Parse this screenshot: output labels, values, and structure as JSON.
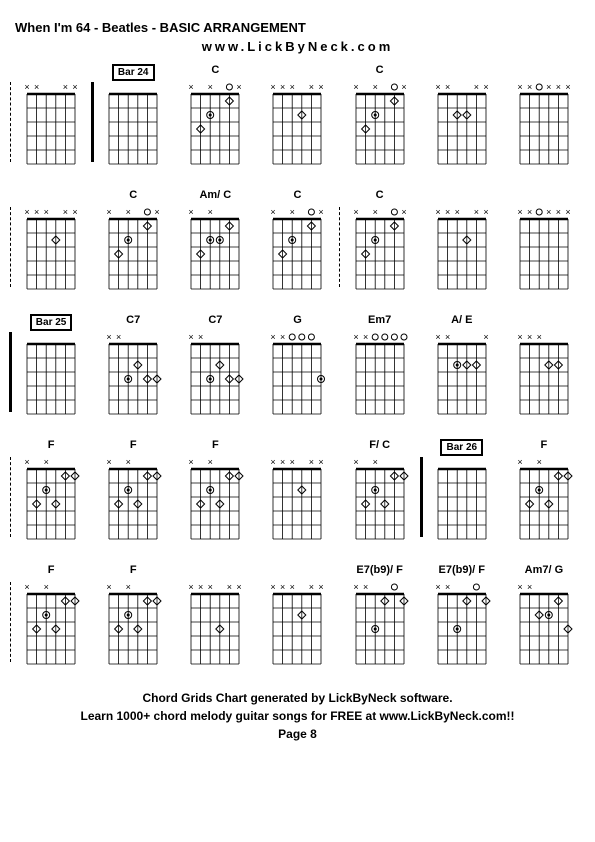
{
  "title": "When I'm 64 - Beatles - BASIC ARRANGEMENT",
  "subtitle": "www.LickByNeck.com",
  "footer_line1": "Chord Grids Chart generated by LickByNeck software.",
  "footer_line2": "Learn 1000+ chord melody guitar songs for FREE at www.LickByNeck.com!!",
  "footer_page": "Page 8",
  "diagram_style": {
    "strings": 6,
    "frets": 5,
    "line_color": "#000000",
    "nut_marker_x": "×",
    "nut_marker_o": "○",
    "nut_marker_filled": "⊗",
    "fret_marker_open": "◇",
    "fret_marker_filled": "●"
  },
  "rows": [
    {
      "cells": [
        {
          "label": "",
          "bar": null,
          "divider": "dash",
          "markers": {
            "top": [
              "x",
              "x",
              "",
              "",
              "x",
              "x"
            ],
            "dots": []
          }
        },
        {
          "label": "Bar 24",
          "bar": true,
          "divider": "bar",
          "markers": {
            "top": [
              "",
              "",
              "",
              "",
              "",
              ""
            ],
            "dots": []
          }
        },
        {
          "label": "C",
          "markers": {
            "top": [
              "x",
              "",
              "x",
              "",
              "o",
              "x"
            ],
            "dots": [
              [
                3,
                2,
                "f"
              ],
              [
                5,
                1,
                "o"
              ],
              [
                2,
                3,
                "o"
              ]
            ]
          }
        },
        {
          "label": "",
          "markers": {
            "top": [
              "x",
              "x",
              "x",
              "",
              "x",
              "x"
            ],
            "dots": [
              [
                4,
                2,
                "o"
              ]
            ]
          }
        },
        {
          "label": "C",
          "markers": {
            "top": [
              "x",
              "",
              "x",
              "",
              "o",
              "x"
            ],
            "dots": [
              [
                3,
                2,
                "f"
              ],
              [
                5,
                1,
                "o"
              ],
              [
                2,
                3,
                "o"
              ]
            ]
          }
        },
        {
          "label": "",
          "markers": {
            "top": [
              "x",
              "x",
              "",
              "",
              "x",
              "x"
            ],
            "dots": [
              [
                4,
                2,
                "o"
              ],
              [
                3,
                2,
                "o"
              ]
            ]
          }
        },
        {
          "label": "",
          "markers": {
            "top": [
              "x",
              "x",
              "o",
              "x",
              "x",
              "x"
            ],
            "dots": []
          }
        }
      ]
    },
    {
      "cells": [
        {
          "label": "",
          "divider": "dash",
          "markers": {
            "top": [
              "x",
              "x",
              "x",
              "",
              "x",
              "x"
            ],
            "dots": [
              [
                4,
                2,
                "o"
              ]
            ]
          }
        },
        {
          "label": "C",
          "markers": {
            "top": [
              "x",
              "",
              "x",
              "",
              "o",
              "x"
            ],
            "dots": [
              [
                3,
                2,
                "f"
              ],
              [
                5,
                1,
                "o"
              ],
              [
                2,
                3,
                "o"
              ]
            ]
          }
        },
        {
          "label": "Am/ C",
          "markers": {
            "top": [
              "x",
              "",
              "x",
              "",
              "",
              ""
            ],
            "dots": [
              [
                3,
                2,
                "f"
              ],
              [
                4,
                2,
                "f"
              ],
              [
                5,
                1,
                "o"
              ],
              [
                2,
                3,
                "o"
              ]
            ]
          }
        },
        {
          "label": "C",
          "markers": {
            "top": [
              "x",
              "",
              "x",
              "",
              "o",
              "x"
            ],
            "dots": [
              [
                3,
                2,
                "f"
              ],
              [
                5,
                1,
                "o"
              ],
              [
                2,
                3,
                "o"
              ]
            ]
          }
        },
        {
          "label": "C",
          "divider": "dash",
          "markers": {
            "top": [
              "x",
              "",
              "x",
              "",
              "o",
              "x"
            ],
            "dots": [
              [
                3,
                2,
                "f"
              ],
              [
                5,
                1,
                "o"
              ],
              [
                2,
                3,
                "o"
              ]
            ]
          }
        },
        {
          "label": "",
          "markers": {
            "top": [
              "x",
              "x",
              "x",
              "",
              "x",
              "x"
            ],
            "dots": [
              [
                4,
                2,
                "o"
              ]
            ]
          }
        },
        {
          "label": "",
          "markers": {
            "top": [
              "x",
              "x",
              "o",
              "x",
              "x",
              "x"
            ],
            "dots": []
          }
        }
      ]
    },
    {
      "cells": [
        {
          "label": "Bar 25",
          "bar": true,
          "divider": "bar",
          "markers": {
            "top": [
              "",
              "",
              "",
              "",
              "",
              ""
            ],
            "dots": []
          }
        },
        {
          "label": "C7",
          "markers": {
            "top": [
              "x",
              "x",
              "",
              "",
              "",
              ""
            ],
            "dots": [
              [
                3,
                3,
                "f"
              ],
              [
                4,
                2,
                "o"
              ],
              [
                5,
                3,
                "o"
              ],
              [
                6,
                3,
                "o"
              ]
            ]
          }
        },
        {
          "label": "C7",
          "markers": {
            "top": [
              "x",
              "x",
              "",
              "",
              "",
              ""
            ],
            "dots": [
              [
                3,
                3,
                "f"
              ],
              [
                4,
                2,
                "o"
              ],
              [
                5,
                3,
                "o"
              ],
              [
                6,
                3,
                "o"
              ]
            ]
          }
        },
        {
          "label": "G",
          "markers": {
            "top": [
              "x",
              "x",
              "o",
              "o",
              "o",
              ""
            ],
            "dots": [
              [
                6,
                3,
                "f"
              ]
            ]
          }
        },
        {
          "label": "Em7",
          "markers": {
            "top": [
              "x",
              "x",
              "o",
              "o",
              "o",
              "o"
            ],
            "dots": []
          }
        },
        {
          "label": "A/ E",
          "markers": {
            "top": [
              "x",
              "x",
              "",
              "",
              "",
              "x"
            ],
            "dots": [
              [
                3,
                2,
                "f"
              ],
              [
                4,
                2,
                "o"
              ],
              [
                5,
                2,
                "o"
              ]
            ]
          }
        },
        {
          "label": "",
          "markers": {
            "top": [
              "x",
              "x",
              "x",
              "",
              "",
              ""
            ],
            "dots": [
              [
                4,
                2,
                "o"
              ],
              [
                5,
                2,
                "o"
              ]
            ]
          }
        }
      ]
    },
    {
      "cells": [
        {
          "label": "F",
          "divider": "dash",
          "markers": {
            "top": [
              "x",
              "",
              "x",
              "",
              "",
              ""
            ],
            "dots": [
              [
                2,
                3,
                "o"
              ],
              [
                3,
                2,
                "f"
              ],
              [
                4,
                3,
                "o"
              ],
              [
                5,
                1,
                "o"
              ],
              [
                6,
                1,
                "o"
              ]
            ]
          }
        },
        {
          "label": "F",
          "markers": {
            "top": [
              "x",
              "",
              "x",
              "",
              "",
              ""
            ],
            "dots": [
              [
                2,
                3,
                "o"
              ],
              [
                3,
                2,
                "f"
              ],
              [
                4,
                3,
                "o"
              ],
              [
                5,
                1,
                "o"
              ],
              [
                6,
                1,
                "o"
              ]
            ]
          }
        },
        {
          "label": "F",
          "markers": {
            "top": [
              "x",
              "",
              "x",
              "",
              "",
              ""
            ],
            "dots": [
              [
                2,
                3,
                "o"
              ],
              [
                3,
                2,
                "f"
              ],
              [
                4,
                3,
                "o"
              ],
              [
                5,
                1,
                "o"
              ],
              [
                6,
                1,
                "o"
              ]
            ]
          }
        },
        {
          "label": "",
          "markers": {
            "top": [
              "x",
              "x",
              "x",
              "",
              "x",
              "x"
            ],
            "dots": [
              [
                4,
                2,
                "o"
              ]
            ]
          }
        },
        {
          "label": "F/ C",
          "markers": {
            "top": [
              "x",
              "",
              "x",
              "",
              "",
              ""
            ],
            "dots": [
              [
                2,
                3,
                "o"
              ],
              [
                3,
                2,
                "f"
              ],
              [
                4,
                3,
                "o"
              ],
              [
                5,
                1,
                "o"
              ],
              [
                6,
                1,
                "o"
              ]
            ]
          }
        },
        {
          "label": "Bar 26",
          "bar": true,
          "divider": "bar",
          "markers": {
            "top": [
              "",
              "",
              "",
              "",
              "",
              ""
            ],
            "dots": []
          }
        },
        {
          "label": "F",
          "markers": {
            "top": [
              "x",
              "",
              "x",
              "",
              "",
              ""
            ],
            "dots": [
              [
                2,
                3,
                "o"
              ],
              [
                3,
                2,
                "f"
              ],
              [
                4,
                3,
                "o"
              ],
              [
                5,
                1,
                "o"
              ],
              [
                6,
                1,
                "o"
              ]
            ]
          }
        }
      ]
    },
    {
      "cells": [
        {
          "label": "F",
          "divider": "dash",
          "markers": {
            "top": [
              "x",
              "",
              "x",
              "",
              "",
              ""
            ],
            "dots": [
              [
                2,
                3,
                "o"
              ],
              [
                3,
                2,
                "f"
              ],
              [
                4,
                3,
                "o"
              ],
              [
                5,
                1,
                "o"
              ],
              [
                6,
                1,
                "o"
              ]
            ]
          }
        },
        {
          "label": "F",
          "markers": {
            "top": [
              "x",
              "",
              "x",
              "",
              "",
              ""
            ],
            "dots": [
              [
                2,
                3,
                "o"
              ],
              [
                3,
                2,
                "f"
              ],
              [
                4,
                3,
                "o"
              ],
              [
                5,
                1,
                "o"
              ],
              [
                6,
                1,
                "o"
              ]
            ]
          }
        },
        {
          "label": "",
          "markers": {
            "top": [
              "x",
              "x",
              "x",
              "",
              "x",
              "x"
            ],
            "dots": [
              [
                4,
                3,
                "o"
              ]
            ]
          }
        },
        {
          "label": "",
          "markers": {
            "top": [
              "x",
              "x",
              "x",
              "",
              "x",
              "x"
            ],
            "dots": [
              [
                4,
                2,
                "o"
              ]
            ]
          }
        },
        {
          "label": "E7(b9)/ F",
          "markers": {
            "top": [
              "x",
              "x",
              "",
              "",
              "o",
              ""
            ],
            "dots": [
              [
                3,
                3,
                "f"
              ],
              [
                4,
                1,
                "o"
              ],
              [
                6,
                1,
                "o"
              ]
            ]
          }
        },
        {
          "label": "E7(b9)/ F",
          "markers": {
            "top": [
              "x",
              "x",
              "",
              "",
              "o",
              ""
            ],
            "dots": [
              [
                3,
                3,
                "f"
              ],
              [
                4,
                1,
                "o"
              ],
              [
                6,
                1,
                "o"
              ]
            ]
          }
        },
        {
          "label": "Am7/ G",
          "markers": {
            "top": [
              "x",
              "x",
              "",
              "",
              "",
              ""
            ],
            "dots": [
              [
                3,
                2,
                "o"
              ],
              [
                4,
                2,
                "f"
              ],
              [
                5,
                1,
                "o"
              ],
              [
                6,
                3,
                "o"
              ]
            ]
          }
        }
      ]
    }
  ]
}
